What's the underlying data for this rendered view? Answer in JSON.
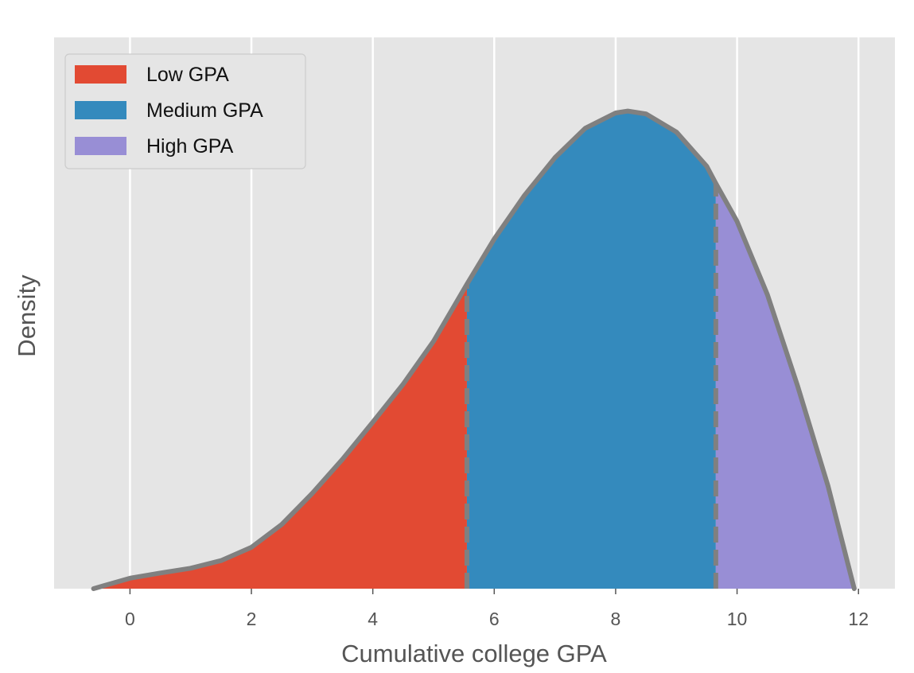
{
  "chart_data": {
    "type": "area",
    "xlabel": "Cumulative college GPA",
    "ylabel": "Density",
    "xlim": [
      -1.25,
      12.6
    ],
    "ylim": [
      0,
      1.0
    ],
    "xticks": [
      0,
      2,
      4,
      6,
      8,
      10,
      12
    ],
    "yticks_shown": false,
    "grid": "vertical",
    "legend_position": "top-left",
    "curve": {
      "x": [
        -0.6,
        0,
        0.5,
        1,
        1.5,
        2,
        2.5,
        3,
        3.5,
        4,
        4.5,
        5,
        5.55,
        6,
        6.5,
        7,
        7.5,
        8,
        8.2,
        8.5,
        9,
        9.5,
        9.65,
        10,
        10.5,
        11,
        11.5,
        11.93
      ],
      "y": [
        0,
        0.022,
        0.033,
        0.043,
        0.059,
        0.087,
        0.135,
        0.2,
        0.272,
        0.35,
        0.43,
        0.52,
        0.64,
        0.735,
        0.827,
        0.906,
        0.968,
        1.0,
        1.004,
        0.998,
        0.96,
        0.888,
        0.852,
        0.772,
        0.618,
        0.425,
        0.215,
        0.0
      ],
      "color": "#808080"
    },
    "series": [
      {
        "name": "Low GPA",
        "x_range": [
          -0.6,
          5.55
        ],
        "color": "#E24A33"
      },
      {
        "name": "Medium GPA",
        "x_range": [
          5.55,
          9.65
        ],
        "color": "#348ABD"
      },
      {
        "name": "High GPA",
        "x_range": [
          9.65,
          11.93
        ],
        "color": "#988ED5"
      }
    ],
    "thresholds": [
      5.55,
      9.65
    ]
  }
}
